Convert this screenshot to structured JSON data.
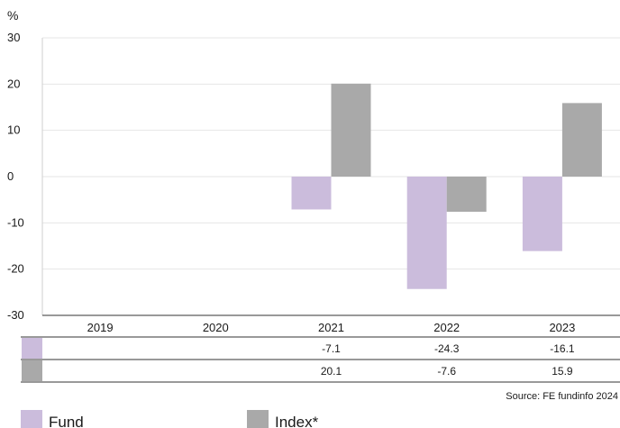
{
  "chart_data": {
    "type": "bar",
    "y_unit": "%",
    "ylim": [
      -30,
      30
    ],
    "y_ticks": [
      30,
      20,
      10,
      0,
      -10,
      -20,
      -30
    ],
    "grid": true,
    "categories": [
      "2019",
      "2020",
      "2021",
      "2022",
      "2023"
    ],
    "series": [
      {
        "name": "Fund",
        "color": "#cbbcdc",
        "values": [
          null,
          null,
          -7.1,
          -24.3,
          -16.1
        ],
        "table_labels": [
          "",
          "",
          "-7.1",
          "-24.3",
          "-16.1"
        ]
      },
      {
        "name": "Index*",
        "color": "#a9a9a9",
        "values": [
          null,
          null,
          20.1,
          -7.6,
          15.9
        ],
        "table_labels": [
          "",
          "",
          "20.1",
          "-7.6",
          "15.9"
        ]
      }
    ],
    "legend_position": "bottom-left",
    "source": "Source: FE fundinfo 2024"
  }
}
